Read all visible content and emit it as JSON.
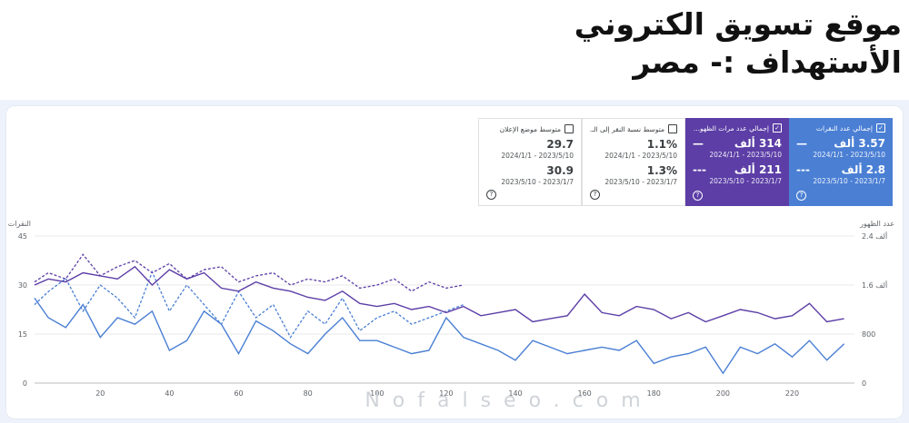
{
  "header": {
    "title_line1": "موقع تسويق الكتروني",
    "title_line2": "الأستهداف :- مصر"
  },
  "cards": [
    {
      "label": "إجمالي عدد النقرات",
      "checked": true,
      "style": "blue",
      "value1": "3.57 ألف",
      "marker1": "—",
      "date1": "2024/1/1 - 2023/5/10",
      "value2": "2.8 ألف",
      "marker2": "---",
      "date2": "2023/5/10 - 2023/1/7"
    },
    {
      "label": "إجمالي عدد مرات الظهو...",
      "checked": true,
      "style": "purple",
      "value1": "314 ألف",
      "marker1": "—",
      "date1": "2024/1/1 - 2023/5/10",
      "value2": "211 ألف",
      "marker2": "---",
      "date2": "2023/5/10 - 2023/1/7"
    },
    {
      "label": "متوسط نسبة النقر إلى الـ...",
      "checked": false,
      "style": "white",
      "value1": "1.1%",
      "marker1": "",
      "date1": "2024/1/1 - 2023/5/10",
      "value2": "1.3%",
      "marker2": "",
      "date2": "2023/5/10 - 2023/1/7"
    },
    {
      "label": "متوسط موضع الإعلان",
      "checked": false,
      "style": "white",
      "value1": "29.7",
      "marker1": "",
      "date1": "2024/1/1 - 2023/5/10",
      "value2": "30.9",
      "marker2": "",
      "date2": "2023/5/10 - 2023/1/7"
    }
  ],
  "watermark": "Nofalseo.com",
  "chart_data": {
    "type": "line",
    "left_axis_label": "النقرات",
    "right_axis_label": "عدد الظهور",
    "left_ticks": [
      "0",
      "15",
      "30",
      "45"
    ],
    "left_ylim": [
      0,
      45
    ],
    "right_ticks": [
      "0",
      "800",
      "1.6 ألف",
      "2.4 ألف"
    ],
    "right_ylim": [
      0,
      2400
    ],
    "x_ticks": [
      20,
      40,
      60,
      80,
      100,
      120,
      140,
      160,
      180,
      200,
      220
    ],
    "xlim": [
      1,
      238
    ],
    "grid": true,
    "colors": {
      "clicks": "#4a7fd4",
      "impressions": "#5c3ea6"
    },
    "clicks_current": {
      "x": [
        1,
        5,
        10,
        15,
        20,
        25,
        30,
        35,
        40,
        45,
        50,
        55,
        60,
        65,
        70,
        75,
        80,
        85,
        90,
        95,
        100,
        105,
        110,
        115,
        120,
        125,
        130,
        135,
        140,
        145,
        150,
        155,
        160,
        165,
        170,
        175,
        180,
        185,
        190,
        195,
        200,
        205,
        210,
        215,
        220,
        225,
        230,
        235
      ],
      "y": [
        26,
        20,
        17,
        24,
        14,
        20,
        18,
        22,
        10,
        13,
        22,
        18,
        9,
        19,
        16,
        12,
        9,
        15,
        20,
        13,
        13,
        11,
        9,
        10,
        20,
        14,
        12,
        10,
        7,
        13,
        11,
        9,
        10,
        11,
        10,
        13,
        6,
        8,
        9,
        11,
        3,
        11,
        9,
        12,
        8,
        13,
        7,
        12
      ]
    },
    "clicks_previous": {
      "x": [
        1,
        5,
        10,
        15,
        20,
        25,
        30,
        35,
        40,
        45,
        50,
        55,
        60,
        65,
        70,
        75,
        80,
        85,
        90,
        95,
        100,
        105,
        110,
        115,
        120,
        125
      ],
      "y": [
        24,
        28,
        32,
        22,
        30,
        26,
        20,
        34,
        22,
        30,
        24,
        18,
        28,
        20,
        24,
        14,
        22,
        18,
        26,
        16,
        20,
        22,
        18,
        20,
        22,
        24
      ]
    },
    "impressions_current": {
      "x": [
        1,
        5,
        10,
        15,
        20,
        25,
        30,
        35,
        40,
        45,
        50,
        55,
        60,
        65,
        70,
        75,
        80,
        85,
        90,
        95,
        100,
        105,
        110,
        115,
        120,
        125,
        130,
        135,
        140,
        145,
        150,
        155,
        160,
        165,
        170,
        175,
        180,
        185,
        190,
        195,
        200,
        205,
        210,
        215,
        220,
        225,
        230,
        235
      ],
      "y": [
        1600,
        1700,
        1650,
        1800,
        1750,
        1700,
        1900,
        1600,
        1850,
        1700,
        1800,
        1550,
        1500,
        1650,
        1550,
        1500,
        1400,
        1350,
        1500,
        1300,
        1250,
        1300,
        1200,
        1250,
        1150,
        1250,
        1100,
        1150,
        1200,
        1000,
        1050,
        1100,
        1450,
        1150,
        1100,
        1250,
        1200,
        1050,
        1150,
        1000,
        1100,
        1200,
        1150,
        1050,
        1100,
        1300,
        1000,
        1050
      ]
    },
    "impressions_previous": {
      "x": [
        1,
        5,
        10,
        15,
        20,
        25,
        30,
        35,
        40,
        45,
        50,
        55,
        60,
        65,
        70,
        75,
        80,
        85,
        90,
        95,
        100,
        105,
        110,
        115,
        120,
        125
      ],
      "y": [
        1650,
        1800,
        1700,
        2100,
        1750,
        1900,
        2000,
        1800,
        1950,
        1700,
        1850,
        1900,
        1650,
        1750,
        1800,
        1600,
        1700,
        1650,
        1750,
        1550,
        1600,
        1700,
        1500,
        1650,
        1550,
        1600
      ]
    }
  }
}
